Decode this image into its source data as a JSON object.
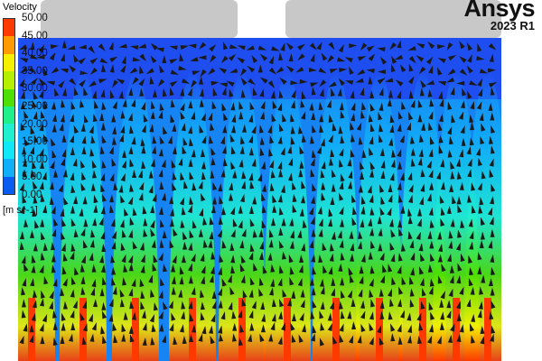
{
  "legend": {
    "title": "Velocity",
    "unit": "[m s^-1]",
    "ticks": [
      "50.00",
      "45.00",
      "40.00",
      "35.00",
      "30.00",
      "25.00",
      "20.00",
      "15.00",
      "10.00",
      "5.00",
      "0.00"
    ],
    "colors": [
      "#ff3a00",
      "#ff9a00",
      "#f5f000",
      "#b6f000",
      "#4ee000",
      "#1ff08a",
      "#1ff0d0",
      "#10e8f8",
      "#10b0f8",
      "#0a5cf0"
    ]
  },
  "brand": {
    "logo": "Ansys",
    "version": "2023 R1"
  },
  "domain_colors": {
    "background": "#1f4ef0",
    "wall": "#c8c8c8",
    "arrow": "#1a1a1a"
  }
}
